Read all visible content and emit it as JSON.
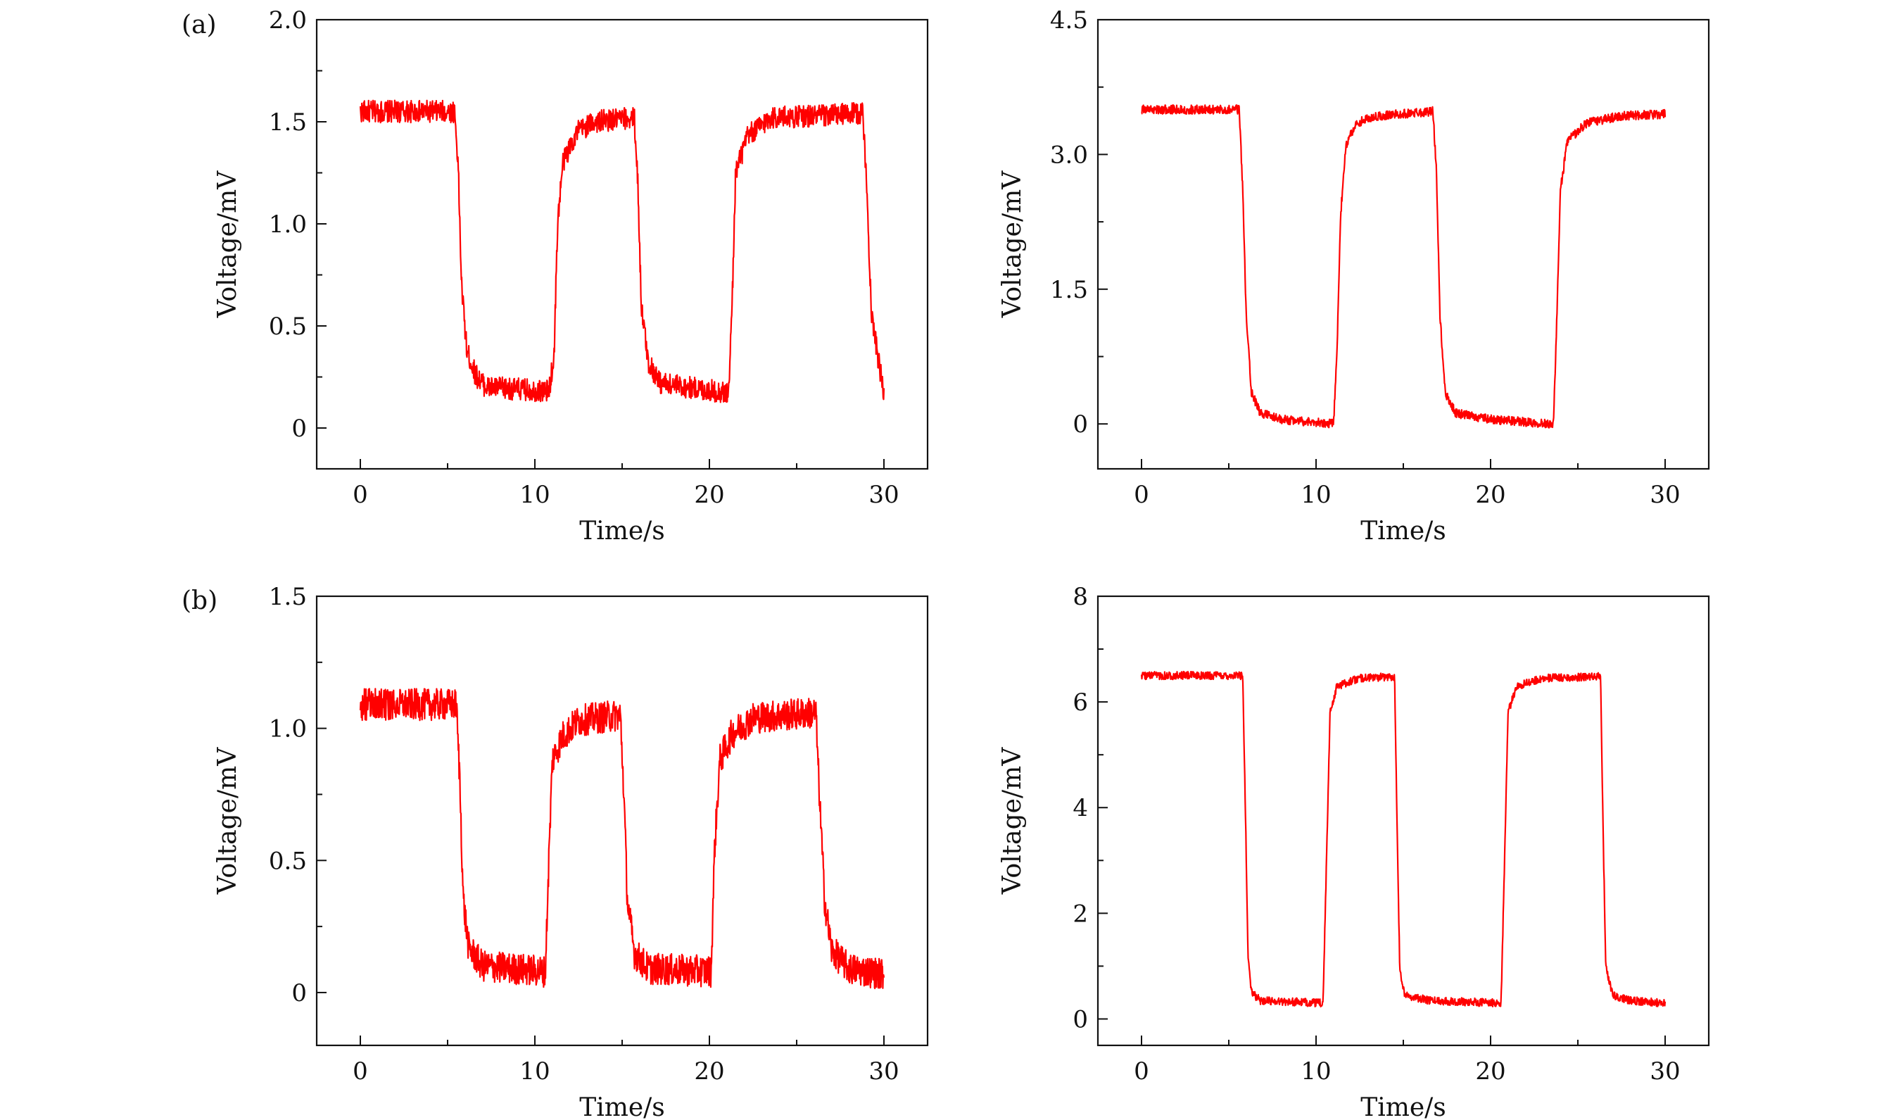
{
  "figure": {
    "panel_labels": [
      "(a)",
      "(b)"
    ],
    "trace_color": "#ff0000"
  },
  "chart_data": [
    {
      "type": "line",
      "panel": "(a)",
      "xlabel": "Time/s",
      "ylabel": "Voltage/mV",
      "xlim": [
        -2.5,
        32.5
      ],
      "ylim": [
        -0.2,
        2.0
      ],
      "xticks": [
        "0",
        "10",
        "20",
        "30"
      ],
      "yticks": [
        "0",
        "0.5",
        "1.0",
        "1.5",
        "2.0"
      ],
      "series": [
        {
          "color": "#ff0000",
          "noise": 0.11,
          "points": [
            [
              0,
              1.55
            ],
            [
              5.4,
              1.55
            ],
            [
              5.6,
              1.3
            ],
            [
              5.8,
              0.7
            ],
            [
              6.1,
              0.38
            ],
            [
              6.6,
              0.26
            ],
            [
              7.2,
              0.2
            ],
            [
              10.8,
              0.18
            ],
            [
              11.1,
              0.35
            ],
            [
              11.3,
              1.0
            ],
            [
              11.6,
              1.3
            ],
            [
              12.4,
              1.45
            ],
            [
              13.4,
              1.5
            ],
            [
              15.7,
              1.52
            ],
            [
              15.9,
              1.2
            ],
            [
              16.1,
              0.6
            ],
            [
              16.5,
              0.32
            ],
            [
              17.2,
              0.22
            ],
            [
              21.1,
              0.17
            ],
            [
              21.3,
              0.6
            ],
            [
              21.5,
              1.25
            ],
            [
              22.2,
              1.43
            ],
            [
              23.5,
              1.52
            ],
            [
              28.8,
              1.54
            ],
            [
              29.0,
              1.2
            ],
            [
              29.3,
              0.55
            ],
            [
              29.7,
              0.32
            ],
            [
              30,
              0.17
            ]
          ]
        }
      ]
    },
    {
      "type": "line",
      "panel": "",
      "xlabel": "Time/s",
      "ylabel": "Voltage/mV",
      "xlim": [
        -2.5,
        32.5
      ],
      "ylim": [
        -0.5,
        4.5
      ],
      "xticks": [
        "0",
        "10",
        "20",
        "30"
      ],
      "yticks": [
        "0",
        "1.5",
        "3.0",
        "4.5"
      ],
      "series": [
        {
          "color": "#ff0000",
          "noise": 0.1,
          "points": [
            [
              0,
              3.5
            ],
            [
              5.6,
              3.5
            ],
            [
              5.8,
              2.6
            ],
            [
              6.0,
              1.2
            ],
            [
              6.3,
              0.35
            ],
            [
              6.8,
              0.12
            ],
            [
              8.0,
              0.05
            ],
            [
              11.0,
              0.0
            ],
            [
              11.2,
              0.8
            ],
            [
              11.4,
              2.3
            ],
            [
              11.7,
              3.1
            ],
            [
              12.3,
              3.35
            ],
            [
              13.5,
              3.43
            ],
            [
              16.7,
              3.48
            ],
            [
              16.9,
              2.8
            ],
            [
              17.1,
              1.2
            ],
            [
              17.4,
              0.35
            ],
            [
              18.0,
              0.12
            ],
            [
              20.0,
              0.05
            ],
            [
              23.6,
              0.0
            ],
            [
              23.8,
              1.2
            ],
            [
              24.0,
              2.6
            ],
            [
              24.4,
              3.15
            ],
            [
              25.5,
              3.35
            ],
            [
              27.5,
              3.43
            ],
            [
              30,
              3.45
            ]
          ]
        }
      ]
    },
    {
      "type": "line",
      "panel": "(b)",
      "xlabel": "Time/s",
      "ylabel": "Voltage/mV",
      "xlim": [
        -2.5,
        32.5
      ],
      "ylim": [
        -0.2,
        1.5
      ],
      "xticks": [
        "0",
        "10",
        "20",
        "30"
      ],
      "yticks": [
        "0",
        "0.5",
        "1.0",
        "1.5"
      ],
      "series": [
        {
          "color": "#ff0000",
          "noise": 0.12,
          "points": [
            [
              0,
              1.09
            ],
            [
              5.5,
              1.09
            ],
            [
              5.7,
              0.8
            ],
            [
              5.9,
              0.35
            ],
            [
              6.2,
              0.17
            ],
            [
              7.0,
              0.1
            ],
            [
              10.6,
              0.08
            ],
            [
              10.8,
              0.5
            ],
            [
              11.0,
              0.88
            ],
            [
              11.6,
              0.97
            ],
            [
              12.5,
              1.03
            ],
            [
              14.9,
              1.05
            ],
            [
              15.1,
              0.75
            ],
            [
              15.3,
              0.35
            ],
            [
              15.7,
              0.15
            ],
            [
              16.5,
              0.09
            ],
            [
              20.1,
              0.08
            ],
            [
              20.3,
              0.55
            ],
            [
              20.6,
              0.88
            ],
            [
              21.3,
              0.98
            ],
            [
              22.5,
              1.04
            ],
            [
              26.1,
              1.06
            ],
            [
              26.3,
              0.75
            ],
            [
              26.6,
              0.35
            ],
            [
              27.0,
              0.16
            ],
            [
              28.0,
              0.09
            ],
            [
              30,
              0.07
            ]
          ]
        }
      ]
    },
    {
      "type": "line",
      "panel": "",
      "xlabel": "Time/s",
      "ylabel": "Voltage/mV",
      "xlim": [
        -2.5,
        32.5
      ],
      "ylim": [
        -0.5,
        8.0
      ],
      "xticks": [
        "0",
        "10",
        "20",
        "30"
      ],
      "yticks": [
        "0",
        "2",
        "4",
        "6",
        "8"
      ],
      "series": [
        {
          "color": "#ff0000",
          "noise": 0.15,
          "points": [
            [
              0,
              6.5
            ],
            [
              5.8,
              6.5
            ],
            [
              5.95,
              4.0
            ],
            [
              6.1,
              1.2
            ],
            [
              6.3,
              0.5
            ],
            [
              6.8,
              0.35
            ],
            [
              10.4,
              0.3
            ],
            [
              10.6,
              3.0
            ],
            [
              10.8,
              5.8
            ],
            [
              11.2,
              6.3
            ],
            [
              12.5,
              6.45
            ],
            [
              14.5,
              6.48
            ],
            [
              14.65,
              3.5
            ],
            [
              14.8,
              0.9
            ],
            [
              15.1,
              0.45
            ],
            [
              16.5,
              0.35
            ],
            [
              20.6,
              0.3
            ],
            [
              20.8,
              3.0
            ],
            [
              21.0,
              5.8
            ],
            [
              21.5,
              6.3
            ],
            [
              23.0,
              6.45
            ],
            [
              26.3,
              6.48
            ],
            [
              26.45,
              3.5
            ],
            [
              26.6,
              1.0
            ],
            [
              27.0,
              0.45
            ],
            [
              28.0,
              0.35
            ],
            [
              30,
              0.3
            ]
          ]
        }
      ]
    }
  ]
}
